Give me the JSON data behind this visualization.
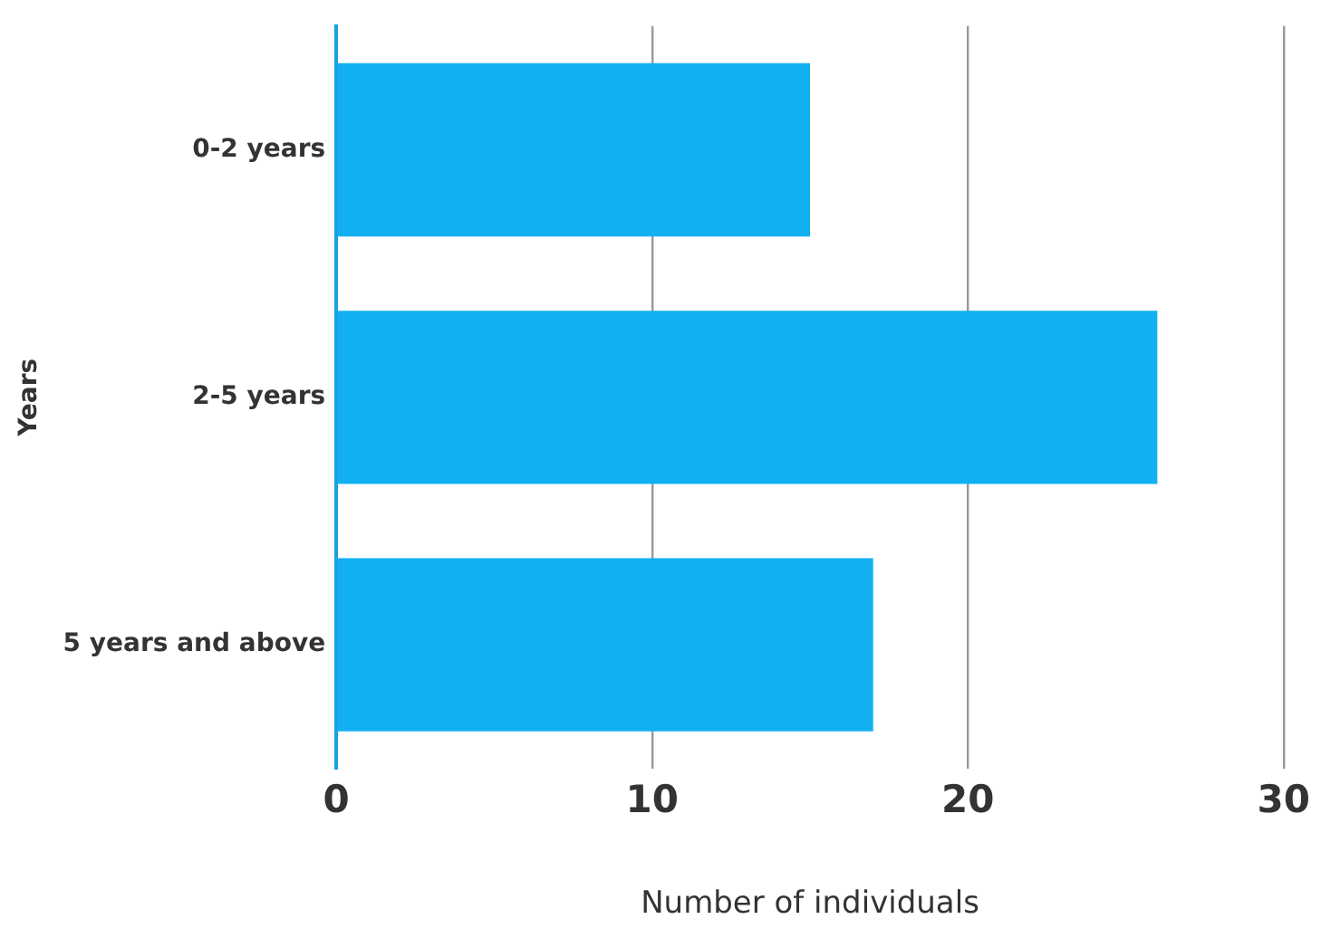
{
  "chart_data": {
    "type": "bar",
    "orientation": "horizontal",
    "categories": [
      "0-2 years",
      "2-5 years",
      "5 years and above"
    ],
    "values": [
      15,
      26,
      17
    ],
    "color": "#12b0f0",
    "xlabel": "Number of individuals",
    "ylabel": "Years",
    "xlim": [
      0,
      30
    ],
    "xticks": [
      0,
      10,
      20,
      30
    ],
    "grid": "x",
    "legend": false
  }
}
